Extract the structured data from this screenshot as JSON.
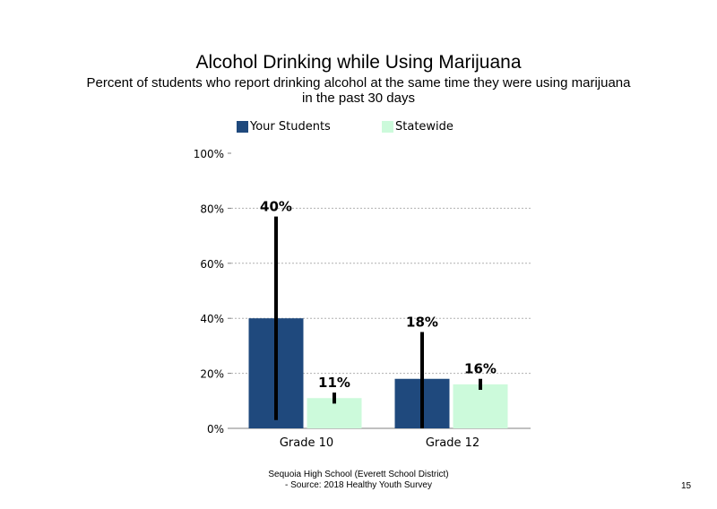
{
  "colors": {
    "your_students": "#1f497d",
    "statewide": "#ccfadb"
  },
  "chart_data": {
    "type": "bar",
    "title": "Alcohol Drinking while Using Marijuana",
    "subtitle_line1": "Percent of students who report drinking alcohol at the same time they were using marijuana",
    "subtitle_line2": "in the past 30 days",
    "categories": [
      "Grade 10",
      "Grade 12"
    ],
    "series": [
      {
        "name": "Your Students",
        "values": [
          40,
          18
        ],
        "labels": [
          "40%",
          "18%"
        ],
        "error_low": [
          3,
          0
        ],
        "error_high": [
          77,
          35
        ]
      },
      {
        "name": "Statewide",
        "values": [
          11,
          16
        ],
        "labels": [
          "11%",
          "16%"
        ],
        "error_low": [
          9,
          14
        ],
        "error_high": [
          13,
          18
        ]
      }
    ],
    "yticks": [
      0,
      20,
      40,
      60,
      80,
      100
    ],
    "ytick_labels": [
      "0%",
      "20%",
      "40%",
      "60%",
      "80%",
      "100%"
    ],
    "ylim": [
      0,
      100
    ],
    "grid": true,
    "legend_position": "top"
  },
  "footer": {
    "line1": "Sequoia High School (Everett School District)",
    "line2": "- Source: 2018 Healthy Youth Survey"
  },
  "page_number": "15"
}
